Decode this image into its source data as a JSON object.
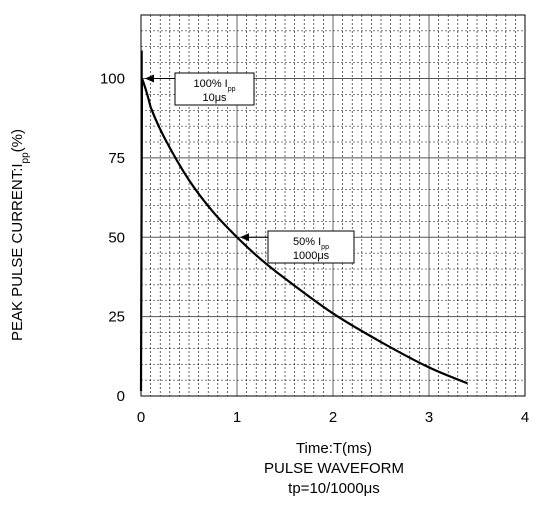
{
  "chart_data": {
    "type": "line",
    "title": "PULSE WAVEFORM",
    "subtitle": "tp=10/1000μs",
    "xlabel": "Time:T(ms)",
    "ylabel_main": "PEAK PULSE CURRENT:I",
    "ylabel_sub": "pp",
    "ylabel_tail": "(%)",
    "xlim": [
      0,
      4
    ],
    "ylim": [
      0,
      120
    ],
    "x_ticks": [
      "0",
      "1",
      "2",
      "3",
      "4"
    ],
    "y_ticks": [
      "0",
      "25",
      "50",
      "75",
      "100"
    ],
    "grid": true,
    "series": [
      {
        "x": [
          0,
          0.01,
          0.1,
          0.25,
          0.5,
          0.75,
          1.0,
          1.25,
          1.5,
          2.0,
          2.5,
          3.0,
          3.4
        ],
        "y": [
          0,
          100,
          91,
          81,
          68,
          58,
          50,
          43,
          37,
          26,
          17,
          9,
          4
        ]
      }
    ],
    "annotations": [
      {
        "line1": "100%",
        "sym": "I",
        "sub": "pp",
        "line2": "10μs",
        "x": 0.01,
        "y": 100
      },
      {
        "line1": "50%",
        "sym": "I",
        "sub": "pp",
        "line2": "1000μs",
        "x": 1.0,
        "y": 50
      }
    ]
  }
}
